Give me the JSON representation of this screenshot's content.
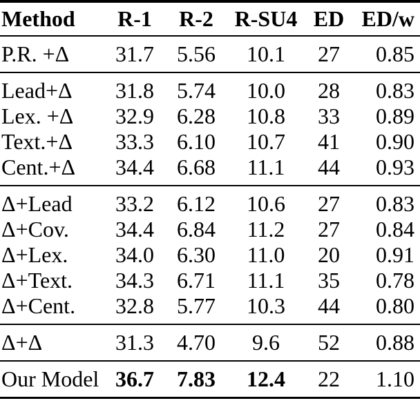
{
  "table": {
    "columns": [
      "Method",
      "R-1",
      "R-2",
      "R-SU4",
      "ED",
      "ED/w"
    ],
    "sections": [
      {
        "name": "baseline-plus-delta",
        "rows": [
          {
            "method": "P.R. +Δ",
            "values": [
              "31.7",
              "5.56",
              "10.1",
              "27",
              "0.85"
            ],
            "bold_values": []
          }
        ]
      },
      {
        "name": "extractor-plus-delta",
        "rows": [
          {
            "method": "Lead+Δ",
            "values": [
              "31.8",
              "5.74",
              "10.0",
              "28",
              "0.83"
            ],
            "bold_values": []
          },
          {
            "method": "Lex. +Δ",
            "values": [
              "32.9",
              "6.28",
              "10.8",
              "33",
              "0.89"
            ],
            "bold_values": []
          },
          {
            "method": "Text.+Δ",
            "values": [
              "33.3",
              "6.10",
              "10.7",
              "41",
              "0.90"
            ],
            "bold_values": []
          },
          {
            "method": "Cent.+Δ",
            "values": [
              "34.4",
              "6.68",
              "11.1",
              "44",
              "0.93"
            ],
            "bold_values": []
          }
        ]
      },
      {
        "name": "delta-plus-extractor",
        "rows": [
          {
            "method": "Δ+Lead",
            "values": [
              "33.2",
              "6.12",
              "10.6",
              "27",
              "0.83"
            ],
            "bold_values": []
          },
          {
            "method": "Δ+Cov.",
            "values": [
              "34.4",
              "6.84",
              "11.2",
              "27",
              "0.84"
            ],
            "bold_values": []
          },
          {
            "method": "Δ+Lex.",
            "values": [
              "34.0",
              "6.30",
              "11.0",
              "20",
              "0.91"
            ],
            "bold_values": []
          },
          {
            "method": "Δ+Text.",
            "values": [
              "34.3",
              "6.71",
              "11.1",
              "35",
              "0.78"
            ],
            "bold_values": []
          },
          {
            "method": "Δ+Cent.",
            "values": [
              "32.8",
              "5.77",
              "10.3",
              "44",
              "0.80"
            ],
            "bold_values": []
          }
        ]
      },
      {
        "name": "delta-plus-delta",
        "rows": [
          {
            "method": "Δ+Δ",
            "values": [
              "31.3",
              "4.70",
              "9.6",
              "52",
              "0.88"
            ],
            "bold_values": []
          }
        ]
      },
      {
        "name": "our-model",
        "rows": [
          {
            "method": "Our Model",
            "values": [
              "36.7",
              "7.83",
              "12.4",
              "22",
              "1.10"
            ],
            "bold_values": [
              0,
              1,
              2
            ]
          }
        ]
      }
    ],
    "colors": {
      "text": "#000000",
      "rule": "#000000",
      "background": "#ffffff"
    }
  }
}
